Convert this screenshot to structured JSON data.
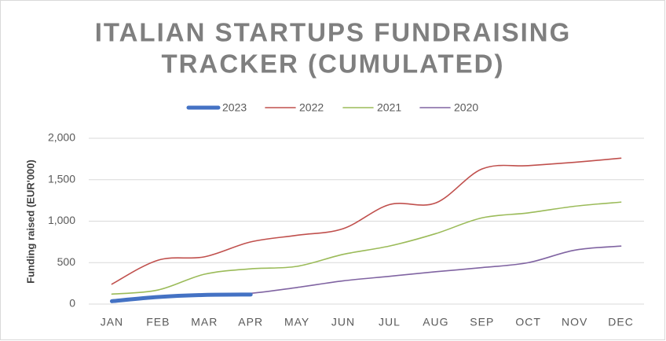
{
  "chart_data": {
    "type": "line",
    "title": [
      "ITALIAN STARTUPS FUNDRAISING",
      "TRACKER (CUMULATED)"
    ],
    "y_label": "Funding raised (EUR'000)",
    "categories": [
      "JAN",
      "FEB",
      "MAR",
      "APR",
      "MAY",
      "JUN",
      "JUL",
      "AUG",
      "SEP",
      "OCT",
      "NOV",
      "DEC"
    ],
    "series": [
      {
        "name": "2023",
        "color": "#4472c4",
        "width": 5,
        "values": [
          35,
          85,
          110,
          115,
          null,
          null,
          null,
          null,
          null,
          null,
          null,
          null
        ]
      },
      {
        "name": "2022",
        "color": "#c0504d",
        "width": 1.6,
        "values": [
          240,
          530,
          570,
          750,
          830,
          910,
          1200,
          1220,
          1630,
          1670,
          1710,
          1760
        ]
      },
      {
        "name": "2021",
        "color": "#9bbb59",
        "width": 1.6,
        "values": [
          120,
          170,
          360,
          425,
          455,
          600,
          700,
          850,
          1040,
          1100,
          1180,
          1230
        ]
      },
      {
        "name": "2020",
        "color": "#8064a2",
        "width": 1.6,
        "values": [
          20,
          80,
          105,
          130,
          200,
          280,
          335,
          390,
          440,
          500,
          650,
          700
        ]
      }
    ],
    "ylim": [
      0,
      2000
    ],
    "yticks": [
      0,
      500,
      {
        "value": 1000,
        "label": "1,000"
      },
      {
        "value": 1500,
        "label": "1,500"
      },
      {
        "value": 2000,
        "label": "2,000"
      }
    ],
    "grid": true,
    "legend": "top"
  }
}
